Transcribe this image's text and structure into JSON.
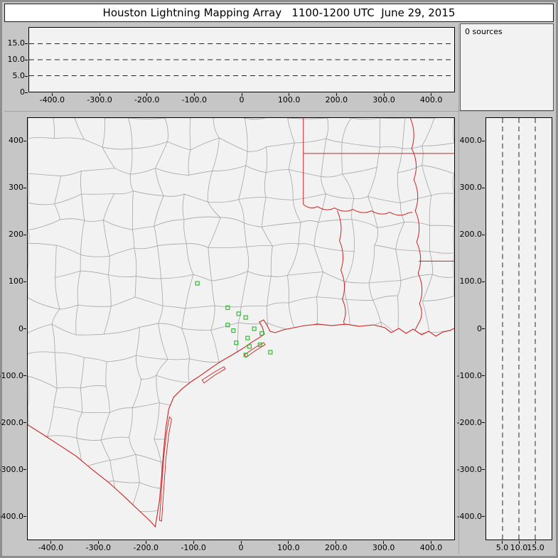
{
  "title": "Houston Lightning Mapping Array   1100-1200 UTC  June 29, 2015",
  "sources_panel": {
    "label": "0 sources"
  },
  "colors": {
    "window_bg": "#c6c6c6",
    "plot_bg": "#f2f2f2",
    "plot_border": "#000000",
    "county_line": "#a5a5a5",
    "state_line": "#cc2222",
    "station": "#33bb33",
    "dash_line": "#222222"
  },
  "alt_ew_panel": {
    "y_tick_labels": [
      "15.0",
      "10.0",
      "5.0",
      "0"
    ],
    "y_tick_values": [
      15,
      10,
      5,
      0
    ],
    "x_tick_labels": [
      "-400.0",
      "-300.0",
      "-200.0",
      "-100.0",
      "0",
      "100.0",
      "200.0",
      "300.0",
      "400.0"
    ],
    "x_tick_values": [
      -400,
      -300,
      -200,
      -100,
      0,
      100,
      200,
      300,
      400
    ],
    "dashed_values": [
      5,
      10,
      15
    ],
    "x_range": [
      -450,
      450
    ],
    "y_range": [
      0,
      20
    ]
  },
  "map_panel": {
    "y_tick_labels": [
      "400",
      "300",
      "200",
      "100",
      "0",
      "-100.0",
      "-200.0",
      "-300.0",
      "-400.0"
    ],
    "y_tick_values": [
      400,
      300,
      200,
      100,
      0,
      -100,
      -200,
      -300,
      -400
    ],
    "x_tick_labels": [
      "-400.0",
      "-300.0",
      "-200.0",
      "-100.0",
      "0",
      "100.0",
      "200.0",
      "300.0",
      "400.0"
    ],
    "x_tick_values": [
      -400,
      -300,
      -200,
      -100,
      0,
      100,
      200,
      300,
      400
    ],
    "x_range": [
      -450,
      450
    ],
    "y_range": [
      -450,
      450
    ],
    "stations_km": [
      [
        -92,
        97
      ],
      [
        -28,
        45
      ],
      [
        -5,
        32
      ],
      [
        10,
        24
      ],
      [
        -28,
        8
      ],
      [
        -16,
        -4
      ],
      [
        28,
        0
      ],
      [
        44,
        -10
      ],
      [
        14,
        -20
      ],
      [
        -10,
        -30
      ],
      [
        18,
        -38
      ],
      [
        40,
        -34
      ],
      [
        62,
        -50
      ],
      [
        10,
        -56
      ]
    ]
  },
  "alt_ns_panel": {
    "y_tick_labels": [
      "400.0",
      "300.0",
      "200.0",
      "100.0",
      "0",
      "-100.0",
      "-200.0",
      "-300.0",
      "-400.0"
    ],
    "y_tick_values": [
      400,
      300,
      200,
      100,
      0,
      -100,
      -200,
      -300,
      -400
    ],
    "x_tick_labels": [
      "5.0",
      "10.0",
      "15.0"
    ],
    "x_tick_values": [
      5,
      10,
      15
    ],
    "dashed_values": [
      5,
      10,
      15
    ],
    "x_range": [
      0,
      20
    ],
    "y_range": [
      -450,
      450
    ]
  },
  "chart_data": {
    "type": "scatter",
    "title": "Houston Lightning Mapping Array   1100-1200 UTC  June 29, 2015",
    "source_count": 0,
    "panels": [
      {
        "name": "altitude_vs_east_west_km",
        "xlim": [
          -450,
          450
        ],
        "ylim": [
          0,
          20
        ],
        "x_ticks": [
          -400,
          -300,
          -200,
          -100,
          0,
          100,
          200,
          300,
          400
        ],
        "y_ticks": [
          15,
          10,
          5,
          0
        ],
        "dashed_altitude_lines_km": [
          5,
          10,
          15
        ],
        "points": []
      },
      {
        "name": "plan_view_map_km",
        "xlim": [
          -450,
          450
        ],
        "ylim": [
          -450,
          450
        ],
        "x_ticks": [
          -400,
          -300,
          -200,
          -100,
          0,
          100,
          200,
          300,
          400
        ],
        "y_ticks": [
          400,
          300,
          200,
          100,
          0,
          -100,
          -200,
          -300,
          -400
        ],
        "points": [],
        "lma_station_locations_km": [
          [
            -92,
            97
          ],
          [
            -28,
            45
          ],
          [
            -5,
            32
          ],
          [
            10,
            24
          ],
          [
            -28,
            8
          ],
          [
            -16,
            -4
          ],
          [
            28,
            0
          ],
          [
            44,
            -10
          ],
          [
            14,
            -20
          ],
          [
            -10,
            -30
          ],
          [
            18,
            -38
          ],
          [
            40,
            -34
          ],
          [
            62,
            -50
          ],
          [
            10,
            -56
          ]
        ]
      },
      {
        "name": "altitude_vs_north_south_km",
        "xlim": [
          0,
          20
        ],
        "ylim": [
          -450,
          450
        ],
        "x_ticks": [
          5,
          10,
          15
        ],
        "y_ticks": [
          400,
          300,
          200,
          100,
          0,
          -100,
          -200,
          -300,
          -400
        ],
        "dashed_altitude_lines_km": [
          5,
          10,
          15
        ],
        "points": []
      }
    ]
  }
}
